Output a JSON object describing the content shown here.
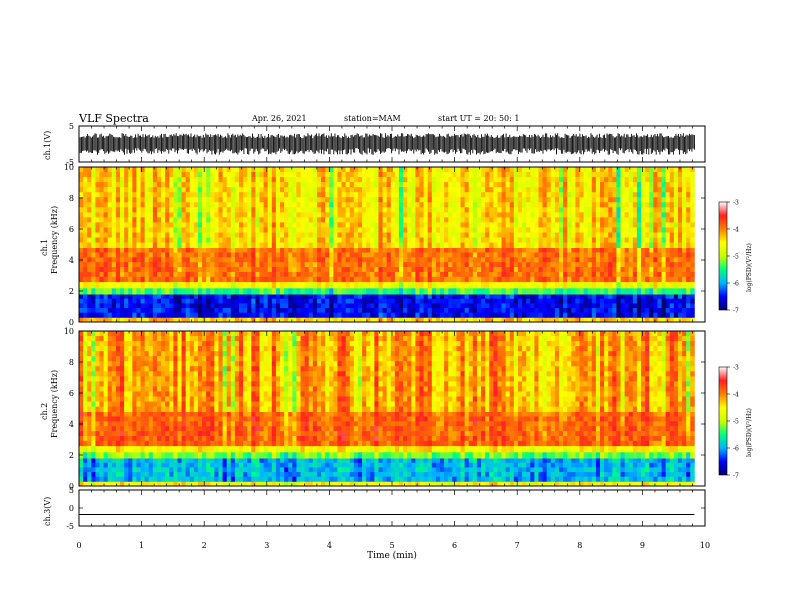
{
  "header": {
    "title": "VLF Spectra",
    "date": "Apr. 26, 2021",
    "station": "station=MAM",
    "start_ut": "start  UT =   20: 50: 1"
  },
  "colors": {
    "background": "#ffffff",
    "waveform": "#000000",
    "colormap": [
      "#000066",
      "#0000ff",
      "#00b4ff",
      "#00ff80",
      "#c8ff00",
      "#ffff00",
      "#ff8000",
      "#ff2020",
      "#ffffff"
    ]
  },
  "chart_data": [
    {
      "id": "waveform_ch1",
      "type": "line",
      "ylabel": "ch.1(V)",
      "ylim": [
        -5,
        5
      ],
      "yticks": [
        "5",
        "-5"
      ],
      "description_values": {
        "amplitude_envelope_V": [
          -3.0,
          3.0
        ],
        "x_range_min": [
          0,
          9.83
        ]
      }
    },
    {
      "id": "spectrogram_ch1",
      "type": "heatmap",
      "ylabel_top": "ch.1",
      "ylabel": "Frequency (kHz)",
      "xlim": [
        0,
        10
      ],
      "ylim": [
        0,
        10
      ],
      "yticks": [
        "0",
        "2",
        "4",
        "6",
        "8",
        "10"
      ],
      "data_x_max": 9.83,
      "bands": [
        {
          "from_khz": 0.0,
          "to_khz": 0.3,
          "log_psd": -4.3
        },
        {
          "from_khz": 0.3,
          "to_khz": 1.8,
          "log_psd": -6.5
        },
        {
          "from_khz": 1.8,
          "to_khz": 2.2,
          "log_psd": -5.4
        },
        {
          "from_khz": 2.2,
          "to_khz": 2.6,
          "log_psd": -4.6
        },
        {
          "from_khz": 2.6,
          "to_khz": 4.8,
          "log_psd": -3.9
        },
        {
          "from_khz": 4.8,
          "to_khz": 10.0,
          "log_psd": -4.4
        }
      ],
      "colorbar": {
        "label": "log(PSD)(V²/Hz)",
        "ticks": [
          "-3",
          "-4",
          "-5",
          "-6",
          "-7"
        ],
        "range": [
          -7,
          -3
        ]
      }
    },
    {
      "id": "spectrogram_ch2",
      "type": "heatmap",
      "ylabel_top": "ch.2",
      "ylabel": "Frequency (kHz)",
      "xlim": [
        0,
        10
      ],
      "ylim": [
        0,
        10
      ],
      "yticks": [
        "0",
        "2",
        "4",
        "6",
        "8",
        "10"
      ],
      "data_x_max": 9.83,
      "bands": [
        {
          "from_khz": 0.0,
          "to_khz": 0.3,
          "log_psd": -4.5
        },
        {
          "from_khz": 0.3,
          "to_khz": 1.8,
          "log_psd": -5.9
        },
        {
          "from_khz": 1.8,
          "to_khz": 2.2,
          "log_psd": -5.2
        },
        {
          "from_khz": 2.2,
          "to_khz": 2.6,
          "log_psd": -4.5
        },
        {
          "from_khz": 2.6,
          "to_khz": 4.8,
          "log_psd": -3.8
        },
        {
          "from_khz": 4.8,
          "to_khz": 10.0,
          "log_psd": -4.1
        }
      ],
      "colorbar": {
        "label": "log(PSD)(V²/Hz)",
        "ticks": [
          "-3",
          "-4",
          "-5",
          "-6",
          "-7"
        ],
        "range": [
          -7,
          -3
        ]
      }
    },
    {
      "id": "waveform_ch3",
      "type": "line",
      "ylabel": "ch.3(V)",
      "ylim": [
        -5,
        5
      ],
      "yticks": [
        "5",
        "0",
        "-5"
      ],
      "x": [
        0,
        9.83
      ],
      "y": [
        -1.8,
        -1.8
      ]
    }
  ],
  "x_axis": {
    "label": "Time (min)",
    "ticks": [
      "0",
      "1",
      "2",
      "3",
      "4",
      "5",
      "6",
      "7",
      "8",
      "9",
      "10"
    ],
    "xlim": [
      0,
      10
    ]
  }
}
